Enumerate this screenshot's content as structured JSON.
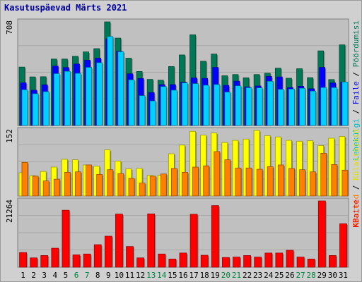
{
  "title": "Kasutuspäevad Märts 2021",
  "chart_data": [
    {
      "type": "bar",
      "name": "hits-panel",
      "ymax_label": "708",
      "ymax": 708,
      "side_label": {
        "parts": [
          "Lehekülgi",
          " / ",
          "Faile",
          " / ",
          "Pöördumisi"
        ],
        "colors": [
          "#00c0c0",
          "#000000",
          "#0000ff",
          "#000000",
          "#007755"
        ]
      },
      "categories": [
        "1",
        "2",
        "3",
        "4",
        "5",
        "6",
        "7",
        "8",
        "9",
        "10",
        "11",
        "12",
        "13",
        "14",
        "15",
        "16",
        "17",
        "18",
        "19",
        "20",
        "21",
        "22",
        "23",
        "24",
        "25",
        "26",
        "27",
        "28",
        "29",
        "30",
        "31"
      ],
      "weekend_days": [
        "6",
        "7",
        "13",
        "14",
        "20",
        "21",
        "27",
        "28"
      ],
      "series": [
        {
          "name": "Pöördumisi",
          "color": "#007755",
          "values": [
            399,
            332,
            333,
            454,
            454,
            473,
            503,
            525,
            708,
            597,
            460,
            369,
            315,
            310,
            403,
            482,
            620,
            439,
            488,
            340,
            348,
            326,
            348,
            357,
            392,
            323,
            388,
            327,
            510,
            314,
            551
          ]
        },
        {
          "name": "Faile",
          "color": "#0000ff",
          "values": [
            292,
            241,
            278,
            406,
            396,
            420,
            446,
            460,
            592,
            507,
            353,
            321,
            225,
            279,
            279,
            296,
            325,
            322,
            397,
            274,
            303,
            264,
            270,
            335,
            332,
            259,
            268,
            251,
            397,
            291,
            297
          ]
        },
        {
          "name": "Lehekülgi",
          "color": "#00d0ff",
          "values": [
            244,
            217,
            231,
            354,
            370,
            356,
            397,
            429,
            608,
            504,
            312,
            204,
            168,
            266,
            241,
            291,
            286,
            275,
            280,
            228,
            271,
            258,
            257,
            302,
            247,
            249,
            254,
            235,
            259,
            259,
            297
          ]
        }
      ]
    },
    {
      "type": "bar",
      "name": "visits-panel",
      "ymax_label": "152",
      "ymax": 152,
      "side_label": {
        "parts": [
          "Aruteid",
          " / ",
          "Külastajaid"
        ],
        "colors": [
          "#ff8000",
          "#000000",
          "#e0e000"
        ]
      },
      "categories": [
        "1",
        "2",
        "3",
        "4",
        "5",
        "6",
        "7",
        "8",
        "9",
        "10",
        "11",
        "12",
        "13",
        "14",
        "15",
        "16",
        "17",
        "18",
        "19",
        "20",
        "21",
        "22",
        "23",
        "24",
        "25",
        "26",
        "27",
        "28",
        "29",
        "30",
        "31"
      ],
      "series": [
        {
          "name": "Külastajaid",
          "color": "#ffff00",
          "values": [
            54,
            47,
            57,
            67,
            85,
            84,
            72,
            69,
            107,
            81,
            63,
            64,
            48,
            48,
            98,
            118,
            150,
            141,
            146,
            124,
            129,
            132,
            152,
            140,
            137,
            129,
            127,
            128,
            117,
            134,
            138
          ]
        },
        {
          "name": "Aruteid",
          "color": "#ff8000",
          "values": [
            78,
            46,
            35,
            39,
            55,
            56,
            72,
            50,
            61,
            52,
            41,
            30,
            46,
            51,
            64,
            55,
            67,
            70,
            103,
            84,
            65,
            65,
            62,
            68,
            72,
            64,
            61,
            56,
            99,
            73,
            60
          ]
        }
      ]
    },
    {
      "type": "bar",
      "name": "bytes-panel",
      "ymax_label": "21264",
      "ymax": 21264,
      "side_label": {
        "parts": [
          "KBaite"
        ],
        "colors": [
          "#ff0000"
        ]
      },
      "categories": [
        "1",
        "2",
        "3",
        "4",
        "5",
        "6",
        "7",
        "8",
        "9",
        "10",
        "11",
        "12",
        "13",
        "14",
        "15",
        "16",
        "17",
        "18",
        "19",
        "20",
        "21",
        "22",
        "23",
        "24",
        "25",
        "26",
        "27",
        "28",
        "29",
        "30",
        "31"
      ],
      "series": [
        {
          "name": "KBaite",
          "color": "#ff0000",
          "values": [
            4720,
            2995,
            3751,
            6090,
            18290,
            3962,
            4244,
            7236,
            9958,
            17050,
            6638,
            2995,
            17112,
            4244,
            2624,
            4555,
            16988,
            3839,
            19776,
            3125,
            3262,
            3751,
            3255,
            4555,
            4555,
            5438,
            3262,
            2624,
            21264,
            3751,
            13940
          ]
        }
      ]
    }
  ]
}
